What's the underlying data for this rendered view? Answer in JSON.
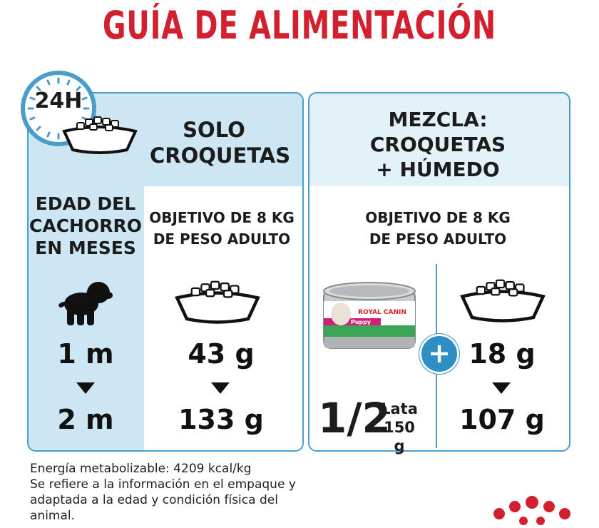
{
  "title": "GUÍA DE ALIMENTACIÓN",
  "badge_24h": "24H",
  "solo": {
    "heading_line1": "SOLO",
    "heading_line2": "CROQUETAS",
    "objective_line1": "OBJETIVO DE 8 KG",
    "objective_line2": "DE PESO ADULTO",
    "value_start": "43 g",
    "value_end": "133 g"
  },
  "age": {
    "label_line1": "EDAD DEL",
    "label_line2": "CACHORRO",
    "label_line3": "EN MESES",
    "start": "1 m",
    "end": "2 m"
  },
  "mix": {
    "heading_line1": "MEZCLA:",
    "heading_line2": "CROQUETAS",
    "heading_line3": "+ HÚMEDO",
    "objective_line1": "OBJETIVO DE 8 KG",
    "objective_line2": "DE PESO ADULTO",
    "can_amount": "1/2",
    "can_unit": "Lata",
    "can_weight": "150 g",
    "plus": "+",
    "dry_start": "18 g",
    "dry_end": "107 g",
    "can_brand": "ROYAL CANIN",
    "can_product": "Puppy"
  },
  "footer": {
    "line1": "Energía metabolizable: 4209 kcal/kg",
    "line2": "Se refiere a la información en el empaque y",
    "line3": "adaptada a la edad y condición física del",
    "line4": "animal."
  },
  "colors": {
    "brand_red": "#d2202f",
    "panel_blue": "#cde6f4",
    "border_blue": "#4a9cc9"
  }
}
